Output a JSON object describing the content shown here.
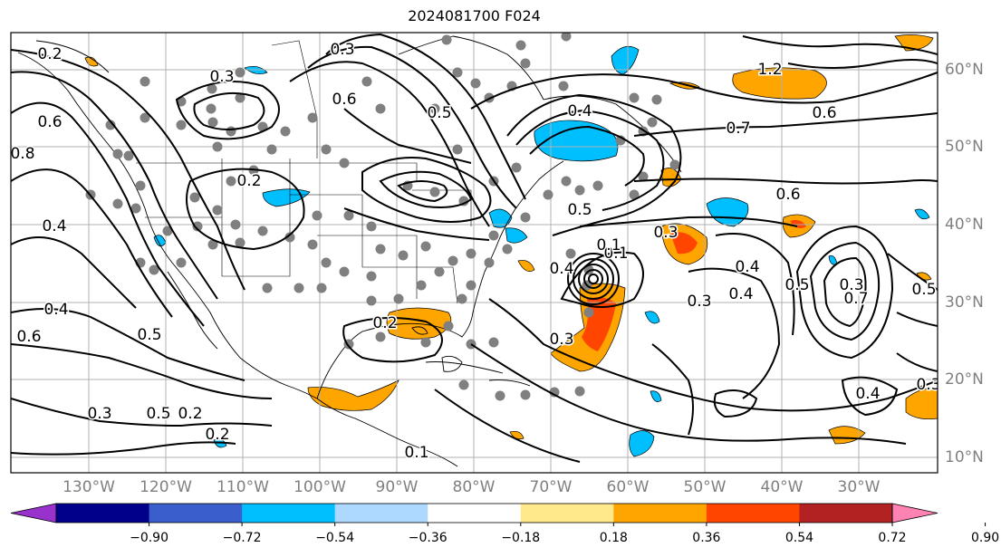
{
  "title": "2024081700 F024",
  "lon_labels": [
    "130°W",
    "120°W",
    "110°W",
    "100°W",
    "90°W",
    "80°W",
    "70°W",
    "60°W",
    "50°W",
    "40°W",
    "30°W"
  ],
  "lat_labels": [
    "60°N",
    "50°N",
    "40°N",
    "30°N",
    "20°N",
    "10°N"
  ],
  "colorbar": {
    "ticks": [
      "−0.90",
      "−0.72",
      "−0.54",
      "−0.36",
      "−0.18",
      "0.18",
      "0.36",
      "0.54",
      "0.72",
      "0.90"
    ],
    "colors": [
      "#9932cc",
      "#00008b",
      "#3a5fcd",
      "#00bfff",
      "#add8ff",
      "#ffffff",
      "#ffe98a",
      "#ffa500",
      "#ff4500",
      "#b22222",
      "#ff82b4"
    ]
  },
  "contour_labels": [
    "0.2",
    "0.3",
    "0.3",
    "0.2",
    "0.6",
    "0.8",
    "0.4",
    "0.4",
    "0.5",
    "0.6",
    "0.5",
    "0.3",
    "0.2",
    "0.2",
    "0.4",
    "0.6",
    "0.7",
    "0.6",
    "0.5",
    "0.4",
    "0.3",
    "0.4",
    "0.3",
    "0.5",
    "0.5",
    "0.6",
    "0.1",
    "0.3",
    "0.4",
    "0.3",
    "0.3",
    "0.1",
    "0.2",
    "1.2",
    "0.7",
    "0.5",
    "0.4",
    "0.1"
  ],
  "colors": {
    "coast": "#000000",
    "grid": "#b0b0b0",
    "dots": "#808080",
    "contour": "#000000"
  }
}
